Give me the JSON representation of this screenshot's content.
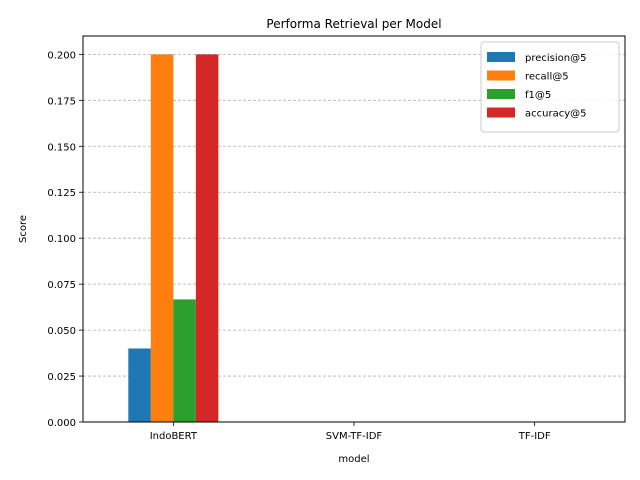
{
  "chart_data": {
    "type": "bar",
    "title": "Performa Retrieval per Model",
    "xlabel": "model",
    "ylabel": "Score",
    "categories": [
      "IndoBERT",
      "SVM-TF-IDF",
      "TF-IDF"
    ],
    "ylim": [
      0,
      0.21
    ],
    "yticks": [
      0.0,
      0.025,
      0.05,
      0.075,
      0.1,
      0.125,
      0.15,
      0.175,
      0.2
    ],
    "ytick_labels": [
      "0.000",
      "0.025",
      "0.050",
      "0.075",
      "0.100",
      "0.125",
      "0.150",
      "0.175",
      "0.200"
    ],
    "grid": "y-dashed",
    "legend_position": "top-right",
    "series": [
      {
        "name": "precision@5",
        "color": "#1f77b4",
        "values": [
          0.04,
          0.0,
          0.0
        ]
      },
      {
        "name": "recall@5",
        "color": "#ff7f0e",
        "values": [
          0.2,
          0.0,
          0.0
        ]
      },
      {
        "name": "f1@5",
        "color": "#2ca02c",
        "values": [
          0.0667,
          0.0,
          0.0
        ]
      },
      {
        "name": "accuracy@5",
        "color": "#d62728",
        "values": [
          0.2,
          0.0,
          0.0
        ]
      }
    ]
  }
}
